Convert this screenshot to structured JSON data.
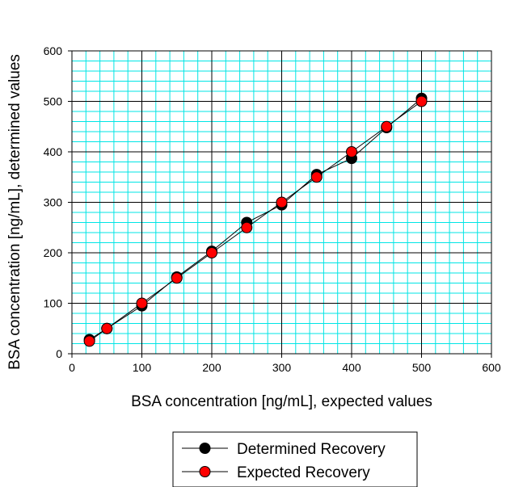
{
  "chart_data": {
    "type": "scatter",
    "xlabel": "BSA concentration [ng/mL], expected values",
    "ylabel": "BSA concentration [ng/mL], determined values",
    "xlim": [
      0,
      600
    ],
    "ylim": [
      0,
      600
    ],
    "x_major_ticks": [
      "0",
      "100",
      "200",
      "300",
      "400",
      "500",
      "600"
    ],
    "y_major_ticks": [
      "0",
      "100",
      "200",
      "300",
      "400",
      "500",
      "600"
    ],
    "x_minor_step": 20,
    "y_minor_step": 20,
    "grid": true,
    "minor_grid_color": "#00e5e5",
    "major_grid_color": "#000000",
    "legend_position": "bottom-center",
    "series": [
      {
        "name": "Determined Recovery",
        "color": "#000000",
        "x": [
          25,
          50,
          100,
          150,
          200,
          250,
          300,
          350,
          400,
          450,
          500
        ],
        "y": [
          28,
          50,
          95,
          152,
          203,
          260,
          295,
          355,
          387,
          448,
          506
        ]
      },
      {
        "name": "Expected Recovery",
        "color": "#ff0000",
        "x": [
          25,
          50,
          100,
          150,
          200,
          250,
          300,
          350,
          400,
          450,
          500
        ],
        "y": [
          25,
          50,
          100,
          150,
          200,
          250,
          300,
          350,
          400,
          450,
          500
        ]
      }
    ]
  }
}
